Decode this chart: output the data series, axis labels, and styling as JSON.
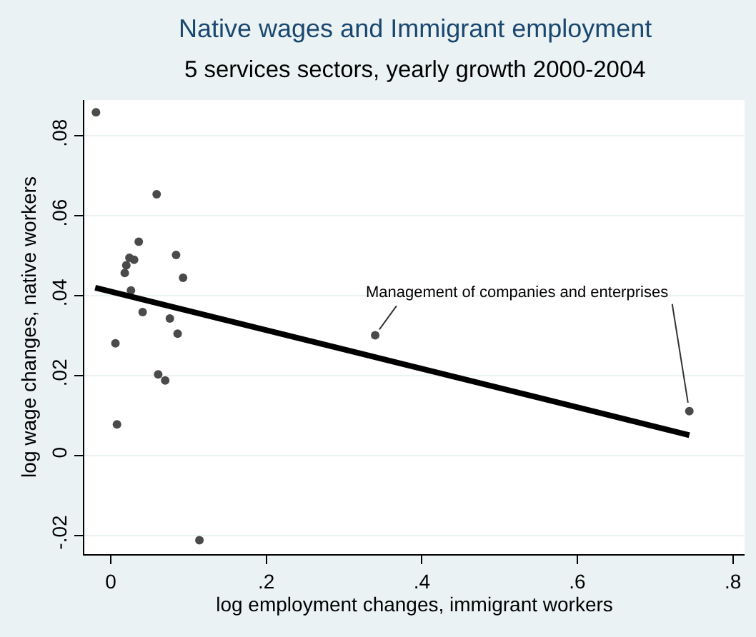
{
  "chart_data": {
    "type": "scatter",
    "title": "Native wages and Immigrant employment",
    "subtitle": "5 services sectors, yearly growth 2000-2004",
    "xlabel": "log employment changes, immigrant workers",
    "ylabel": "log wage changes, native workers",
    "series": [
      {
        "color": "#4a4a4a",
        "marker": "circle",
        "x": [
          -0.019,
          0.059,
          0.036,
          0.024,
          0.03,
          0.02,
          0.018,
          0.084,
          0.093,
          0.026,
          0.041,
          0.076,
          0.086,
          0.006,
          0.061,
          0.07,
          0.008,
          0.114,
          0.34,
          0.744
        ],
        "values": [
          0.0859,
          0.0654,
          0.0535,
          0.0495,
          0.049,
          0.0476,
          0.0457,
          0.0502,
          0.0445,
          0.0413,
          0.0359,
          0.0343,
          0.0305,
          0.0281,
          0.0203,
          0.0188,
          0.0078,
          -0.0212,
          0.0301,
          0.0111
        ]
      },
      {
        "type": "line",
        "color": "#000000",
        "line_style": "solid",
        "x": [
          -0.02,
          0.744
        ],
        "values": [
          0.042,
          0.0051
        ]
      }
    ],
    "annotations": [
      {
        "text": "Management of companies and enterprises",
        "x": 0.744,
        "y": 0.0111
      }
    ],
    "xlim": [
      -0.034,
      0.815
    ],
    "ylim": [
      -0.0247,
      0.089
    ],
    "xticks": [
      0,
      {
        "value": 0.2,
        "label": ".2"
      },
      {
        "value": 0.4,
        "label": ".4"
      },
      {
        "value": 0.6,
        "label": ".6"
      },
      {
        "value": 0.8,
        "label": ".8"
      }
    ],
    "yticks": [
      {
        "value": -0.02,
        "label": "-.02"
      },
      0,
      {
        "value": 0.02,
        "label": ".02"
      },
      {
        "value": 0.04,
        "label": ".04"
      },
      {
        "value": 0.06,
        "label": ".06"
      },
      {
        "value": 0.08,
        "label": ".08"
      }
    ],
    "grid": "y"
  }
}
